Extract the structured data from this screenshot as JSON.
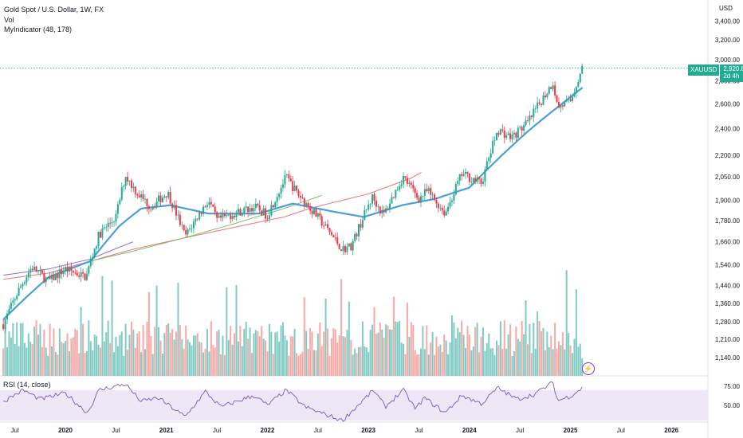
{
  "header": {
    "title": "Gold Spot / U.S. Dollar, 1W, FX",
    "vol_label": "Vol",
    "indicator_label": "MyIndicator (48, 178)"
  },
  "currency": "USD",
  "symbol_badge": {
    "symbol": "XAUUSD",
    "price": "2,920.84",
    "countdown": "2d 4h"
  },
  "rsi_label": "RSI (14, close)",
  "colors": {
    "up": "#22ab94",
    "down": "#f23645",
    "vol_up": "#80cbc4",
    "vol_down": "#f7a9a7",
    "ma_blue": "#4a9fd8",
    "ma_red": "#f07178",
    "ma_green": "#7cbf6b",
    "rsi_line": "#7e57c2",
    "rsi_band": "#ede7f6"
  },
  "chart_data": {
    "type": "candlestick",
    "title": "Gold Spot / U.S. Dollar, 1W, FX",
    "price_axis": {
      "scale": "log",
      "ticks": [
        "3,400.00",
        "3,200.00",
        "3,000.00",
        "2,800.00",
        "2,600.00",
        "2,400.00",
        "2,200.00",
        "2,050.00",
        "1,900.00",
        "1,780.00",
        "1,660.00",
        "1,540.00",
        "1,440.00",
        "1,360.00",
        "1,280.00",
        "1,210.00",
        "1,140.00"
      ],
      "range": [
        1100,
        3500
      ]
    },
    "time_axis": {
      "ticks": [
        "Jul",
        "2020",
        "Jul",
        "2021",
        "Jul",
        "2022",
        "Jul",
        "2023",
        "Jul",
        "2024",
        "Jul",
        "2025",
        "Jul",
        "2026"
      ],
      "range": [
        "2019-05",
        "2026-08"
      ]
    },
    "last_price": 2920.84,
    "price_anchors": [
      [
        "2019-05-20",
        1270
      ],
      [
        "2019-07-15",
        1420
      ],
      [
        "2019-09-01",
        1530
      ],
      [
        "2019-11-01",
        1460
      ],
      [
        "2020-01-01",
        1520
      ],
      [
        "2020-03-15",
        1480
      ],
      [
        "2020-05-01",
        1700
      ],
      [
        "2020-07-01",
        1800
      ],
      [
        "2020-08-05",
        2060
      ],
      [
        "2020-09-15",
        1950
      ],
      [
        "2020-11-05",
        1860
      ],
      [
        "2021-01-05",
        1950
      ],
      [
        "2021-03-08",
        1690
      ],
      [
        "2021-06-01",
        1900
      ],
      [
        "2021-07-01",
        1780
      ],
      [
        "2021-09-01",
        1820
      ],
      [
        "2021-11-15",
        1860
      ],
      [
        "2022-01-01",
        1810
      ],
      [
        "2022-03-08",
        2050
      ],
      [
        "2022-04-15",
        1950
      ],
      [
        "2022-06-15",
        1830
      ],
      [
        "2022-09-28",
        1620
      ],
      [
        "2022-11-01",
        1640
      ],
      [
        "2023-01-15",
        1920
      ],
      [
        "2023-02-25",
        1810
      ],
      [
        "2023-05-05",
        2050
      ],
      [
        "2023-07-01",
        1910
      ],
      [
        "2023-08-01",
        1960
      ],
      [
        "2023-10-05",
        1820
      ],
      [
        "2023-12-04",
        2070
      ],
      [
        "2024-02-15",
        2010
      ],
      [
        "2024-04-12",
        2390
      ],
      [
        "2024-06-01",
        2330
      ],
      [
        "2024-08-01",
        2450
      ],
      [
        "2024-10-30",
        2790
      ],
      [
        "2024-11-15",
        2570
      ],
      [
        "2024-12-31",
        2620
      ],
      [
        "2025-02-14",
        2920.84
      ]
    ],
    "ma_blue_anchors": [
      [
        "2019-05-20",
        1290
      ],
      [
        "2019-11-01",
        1480
      ],
      [
        "2020-04-01",
        1560
      ],
      [
        "2020-07-15",
        1750
      ],
      [
        "2020-10-01",
        1850
      ],
      [
        "2021-01-15",
        1870
      ],
      [
        "2021-06-01",
        1820
      ],
      [
        "2021-12-01",
        1820
      ],
      [
        "2022-04-01",
        1880
      ],
      [
        "2022-09-01",
        1830
      ],
      [
        "2022-12-15",
        1800
      ],
      [
        "2023-05-01",
        1870
      ],
      [
        "2023-09-01",
        1910
      ],
      [
        "2024-01-01",
        1980
      ],
      [
        "2024-04-01",
        2150
      ],
      [
        "2024-08-01",
        2380
      ],
      [
        "2024-12-01",
        2600
      ],
      [
        "2025-02-14",
        2740
      ]
    ],
    "ma_red_anchors": [
      [
        "2019-05-20",
        1470
      ],
      [
        "2019-11-01",
        1500
      ],
      [
        "2020-04-01",
        1560
      ],
      [
        "2020-09-01",
        1620
      ],
      [
        "2021-03-01",
        1680
      ],
      [
        "2021-09-01",
        1740
      ],
      [
        "2022-03-01",
        1800
      ],
      [
        "2022-06-01",
        1850
      ],
      [
        "2023-01-01",
        1940
      ],
      [
        "2023-06-01",
        2040
      ],
      [
        "2023-07-10",
        2080
      ]
    ],
    "ma_green_anchors": [
      [
        "2020-04-01",
        1560
      ],
      [
        "2020-09-01",
        1610
      ],
      [
        "2021-03-01",
        1680
      ],
      [
        "2021-09-01",
        1760
      ],
      [
        "2022-03-01",
        1850
      ],
      [
        "2022-07-15",
        1930
      ]
    ],
    "ma_purple_anchors": [
      [
        "2019-05-20",
        1490
      ],
      [
        "2019-11-01",
        1520
      ],
      [
        "2020-04-01",
        1570
      ],
      [
        "2020-09-01",
        1660
      ]
    ],
    "rsi": {
      "levels": [
        "75.00",
        "50.00"
      ],
      "band": [
        30,
        70
      ],
      "anchors": [
        [
          "2019-05-20",
          55
        ],
        [
          "2019-08-01",
          70
        ],
        [
          "2019-10-01",
          58
        ],
        [
          "2020-01-01",
          66
        ],
        [
          "2020-03-20",
          40
        ],
        [
          "2020-05-01",
          70
        ],
        [
          "2020-08-05",
          78
        ],
        [
          "2020-10-01",
          55
        ],
        [
          "2020-12-01",
          60
        ],
        [
          "2021-03-08",
          35
        ],
        [
          "2021-05-20",
          68
        ],
        [
          "2021-07-15",
          48
        ],
        [
          "2021-11-15",
          63
        ],
        [
          "2022-01-01",
          50
        ],
        [
          "2022-03-08",
          70
        ],
        [
          "2022-05-15",
          48
        ],
        [
          "2022-09-28",
          30
        ],
        [
          "2023-01-20",
          70
        ],
        [
          "2023-03-01",
          48
        ],
        [
          "2023-05-05",
          70
        ],
        [
          "2023-06-20",
          45
        ],
        [
          "2023-07-20",
          60
        ],
        [
          "2023-10-05",
          40
        ],
        [
          "2023-12-04",
          63
        ],
        [
          "2024-02-15",
          52
        ],
        [
          "2024-04-12",
          73
        ],
        [
          "2024-06-20",
          58
        ],
        [
          "2024-08-20",
          64
        ],
        [
          "2024-10-30",
          80
        ],
        [
          "2024-11-15",
          56
        ],
        [
          "2024-12-31",
          62
        ],
        [
          "2025-02-14",
          73
        ]
      ]
    }
  }
}
